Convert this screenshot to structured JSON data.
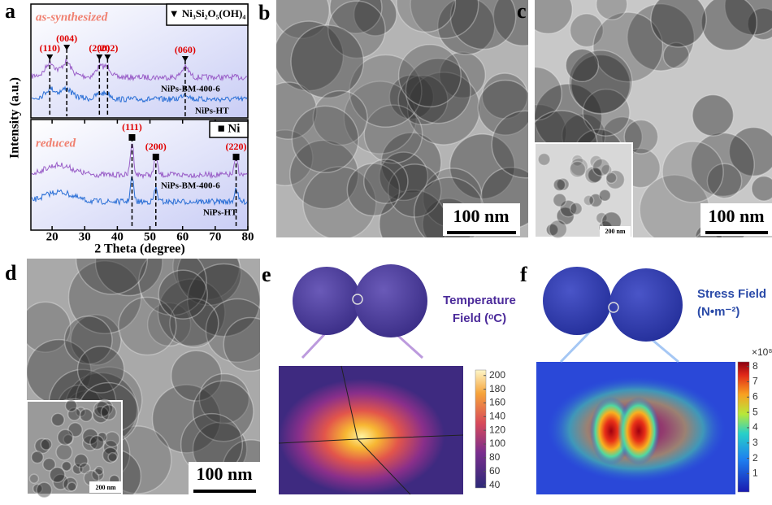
{
  "panel_labels": [
    "a",
    "b",
    "c",
    "d",
    "e",
    "f"
  ],
  "chart_data": {
    "type": "line",
    "y_label": "Intensity (a.u.)",
    "x_label": "2 Theta (degree)",
    "xlim": [
      13.5,
      80
    ],
    "xticks": [
      20,
      30,
      40,
      50,
      60,
      70,
      80
    ],
    "panels": [
      {
        "annotation": "as-synthesized",
        "legend": "▼ Ni₃Si₂O₅(OH)₄",
        "peaks": [
          {
            "label": "(110)",
            "x": 19.3
          },
          {
            "label": "(004)",
            "x": 24.5
          },
          {
            "label": "(200)",
            "x": 34.5
          },
          {
            "label": "(202)",
            "x": 37
          },
          {
            "label": "(060)",
            "x": 60.8
          }
        ],
        "series": [
          {
            "name": "NiPs-BM-400-6",
            "color": "#9a5fc8"
          },
          {
            "name": "NiPs-HT",
            "color": "#2a6fd6"
          }
        ]
      },
      {
        "annotation": "reduced",
        "legend": "■ Ni",
        "peaks": [
          {
            "label": "(111)",
            "x": 44.5
          },
          {
            "label": "(200)",
            "x": 51.8
          },
          {
            "label": "(220)",
            "x": 76.4
          }
        ],
        "series": [
          {
            "name": "NiPs-BM-400-6",
            "color": "#9a5fc8"
          },
          {
            "name": "NiPs-HT",
            "color": "#2a6fd6"
          }
        ]
      }
    ]
  },
  "images": {
    "b": {
      "scale_bar": "100 nm"
    },
    "c": {
      "scale_bar": "100 nm",
      "inset_scale_bar": "200 nm"
    },
    "d": {
      "scale_bar": "100 nm",
      "inset_scale_bar": "200 nm"
    }
  },
  "simulations": {
    "e": {
      "title_lines": [
        "Temperature",
        "Field (ᵒC)"
      ],
      "ylim": [
        36,
        208
      ],
      "yticks": [
        40,
        60,
        80,
        100,
        120,
        140,
        160,
        180,
        200
      ]
    },
    "f": {
      "title_lines": [
        "Stress Field",
        "(N•m⁻²)"
      ],
      "multiplier": "×10⁸",
      "ylim": [
        -0.2,
        8.3
      ],
      "yticks": [
        1,
        2,
        3,
        4,
        5,
        6,
        7,
        8
      ]
    }
  }
}
